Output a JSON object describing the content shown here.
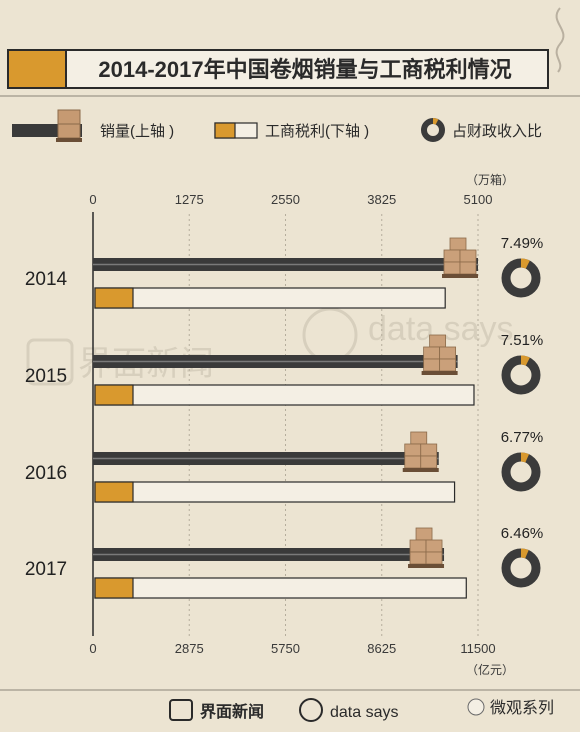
{
  "title": "2014-2017年中国卷烟销量与工商税利情况",
  "legend": {
    "sales": "销量(上轴 )",
    "tax": "工商税利(下轴 )",
    "ratio": "占财政收入比"
  },
  "axes": {
    "top_unit": "（万箱）",
    "bottom_unit": "（亿元）"
  },
  "watermarks": [
    "界面新闻",
    "data says"
  ],
  "footer": {
    "brand1": "界面新闻",
    "brand2": "data says",
    "wechat": "微观系列"
  },
  "colors": {
    "background": "#ece4d2",
    "sales_bar": "#3a3a3a",
    "tax_fill": "#d9992e",
    "tax_bar": "#f4efe4",
    "donut_dark": "#3b3b3b"
  },
  "chart_data": {
    "type": "bar",
    "categories": [
      "2014",
      "2015",
      "2016",
      "2017"
    ],
    "top_axis": {
      "label": "万箱",
      "range": [
        0,
        5100
      ],
      "ticks": [
        "0",
        "1275",
        "2550",
        "3825",
        "5100"
      ]
    },
    "bottom_axis": {
      "label": "亿元",
      "range": [
        0,
        11500
      ],
      "ticks": [
        "0",
        "2875",
        "5750",
        "8625",
        "11500"
      ]
    },
    "series": [
      {
        "name": "销量",
        "axis": "top",
        "values": [
          5100,
          4830,
          4580,
          4650
        ]
      },
      {
        "name": "工商税利",
        "axis": "bottom",
        "values": [
          10520,
          11380,
          10800,
          11150
        ]
      },
      {
        "name": "占财政收入比",
        "values": [
          7.49,
          7.51,
          6.77,
          6.46
        ],
        "labels": [
          "7.49%",
          "7.51%",
          "6.77%",
          "6.46%"
        ]
      }
    ]
  }
}
